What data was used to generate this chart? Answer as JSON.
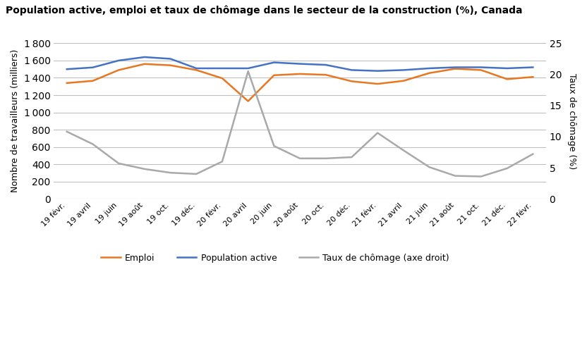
{
  "title": "Population active, emploi et taux de chômage dans le secteur de la construction (%), Canada",
  "ylabel_left": "Nombre de travailleurs (milliers)",
  "ylabel_right": "Taux de chômage (%)",
  "x_labels": [
    "19 févr.",
    "19 avril",
    "19 juin",
    "19 août",
    "19 oct.",
    "19 déc.",
    "20 févr.",
    "20 avril",
    "20 juin",
    "20 août",
    "20 oct.",
    "20 déc.",
    "21 févr.",
    "21 avril",
    "21 juin",
    "21 août",
    "21 oct.",
    "21 déc.",
    "22 févr."
  ],
  "emploi": [
    1340,
    1365,
    1490,
    1560,
    1545,
    1490,
    1395,
    1130,
    1430,
    1445,
    1435,
    1360,
    1330,
    1365,
    1455,
    1505,
    1490,
    1385,
    1410
  ],
  "population_active": [
    1500,
    1520,
    1600,
    1640,
    1620,
    1510,
    1510,
    1510,
    1578,
    1562,
    1550,
    1490,
    1480,
    1490,
    1510,
    1522,
    1522,
    1510,
    1522
  ],
  "chomage_pct": [
    10.8,
    8.8,
    5.7,
    4.8,
    4.2,
    4.0,
    6.0,
    20.5,
    8.5,
    6.5,
    6.5,
    6.7,
    10.6,
    7.8,
    5.1,
    3.7,
    3.6,
    4.9,
    7.2
  ],
  "ylim_left": [
    0,
    1800
  ],
  "ylim_right": [
    0,
    25
  ],
  "yticks_left": [
    0,
    200,
    400,
    600,
    800,
    1000,
    1200,
    1400,
    1600,
    1800
  ],
  "yticks_right": [
    0,
    5,
    10,
    15,
    20,
    25
  ],
  "emploi_color": "#E87722",
  "population_active_color": "#4472C4",
  "chomage_color": "#A9A9A9",
  "grid_color": "#C0C0C0",
  "background_color": "#FFFFFF",
  "legend_emploi": "Emploi",
  "legend_pop": "Population active",
  "legend_chomage": "Taux de chômage (axe droit)"
}
